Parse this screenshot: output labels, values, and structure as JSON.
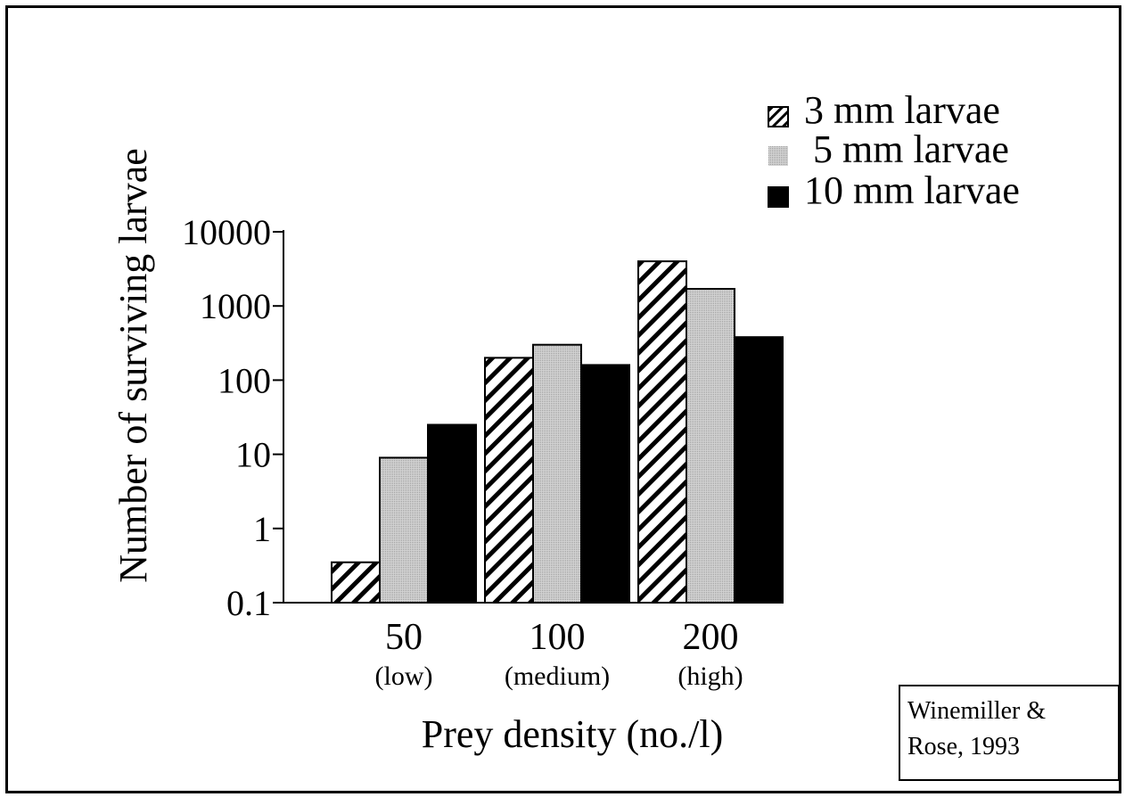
{
  "chart_data": {
    "type": "bar",
    "ylabel": "Number of surviving larvae",
    "xlabel": "Prey density (no./l)",
    "yscale": "log",
    "ylim": [
      0.1,
      10000
    ],
    "yticks": [
      "10000",
      "1000",
      "100",
      "10",
      "1",
      "0.1"
    ],
    "ytick_values": [
      10000,
      1000,
      100,
      10,
      1,
      0.1
    ],
    "categories": [
      "50",
      "100",
      "200"
    ],
    "category_sublabels": [
      "(low)",
      "(medium)",
      "(high)"
    ],
    "series": [
      {
        "name": "3 mm larvae",
        "pattern": "hatched",
        "color": "#000000",
        "values": [
          0.35,
          200,
          4000
        ]
      },
      {
        "name": "5 mm larvae",
        "pattern": "gray",
        "color": "#c4c4c4",
        "values": [
          9,
          300,
          1700
        ]
      },
      {
        "name": "10 mm larvae",
        "pattern": "solid",
        "color": "#000000",
        "values": [
          25,
          160,
          380
        ]
      }
    ],
    "legend_position": "top-right",
    "grid": false
  },
  "credit": {
    "line1": "Winemiller &",
    "line2": "Rose, 1993"
  }
}
